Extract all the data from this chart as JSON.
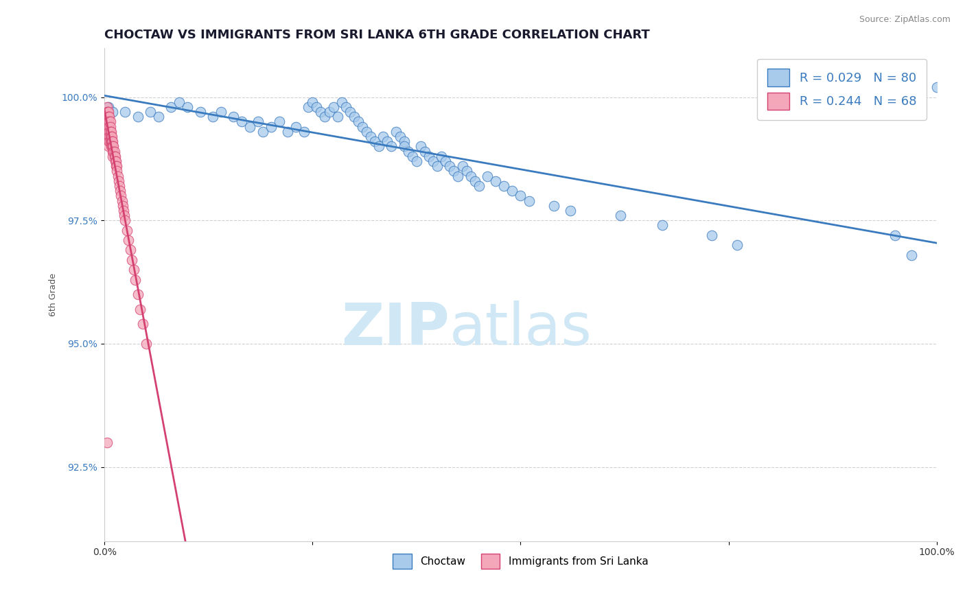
{
  "title": "CHOCTAW VS IMMIGRANTS FROM SRI LANKA 6TH GRADE CORRELATION CHART",
  "source_text": "Source: ZipAtlas.com",
  "ylabel": "6th Grade",
  "xlim": [
    0,
    1.0
  ],
  "ylim": [
    0.91,
    1.01
  ],
  "yticks": [
    0.925,
    0.95,
    0.975,
    1.0
  ],
  "ytick_labels": [
    "92.5%",
    "95.0%",
    "97.5%",
    "100.0%"
  ],
  "xticks": [
    0.0,
    0.25,
    0.5,
    0.75,
    1.0
  ],
  "xtick_labels": [
    "0.0%",
    "",
    "",
    "",
    "100.0%"
  ],
  "blue_color": "#a8caeb",
  "pink_color": "#f4a7b9",
  "blue_line_color": "#3a7bbf",
  "pink_line_color": "#d44070",
  "legend_R_blue": "R = 0.029",
  "legend_N_blue": "N = 80",
  "legend_R_pink": "R = 0.244",
  "legend_N_pink": "N = 68",
  "blue_scatter_x": [
    0.005,
    0.01,
    0.025,
    0.04,
    0.055,
    0.065,
    0.08,
    0.09,
    0.1,
    0.115,
    0.13,
    0.14,
    0.155,
    0.165,
    0.175,
    0.185,
    0.19,
    0.2,
    0.21,
    0.22,
    0.23,
    0.24,
    0.245,
    0.25,
    0.255,
    0.26,
    0.265,
    0.27,
    0.275,
    0.28,
    0.285,
    0.29,
    0.295,
    0.3,
    0.305,
    0.31,
    0.315,
    0.32,
    0.325,
    0.33,
    0.335,
    0.34,
    0.345,
    0.35,
    0.355,
    0.36,
    0.36,
    0.365,
    0.37,
    0.375,
    0.38,
    0.385,
    0.39,
    0.395,
    0.4,
    0.405,
    0.41,
    0.415,
    0.42,
    0.425,
    0.43,
    0.435,
    0.44,
    0.445,
    0.45,
    0.46,
    0.47,
    0.48,
    0.49,
    0.5,
    0.51,
    0.54,
    0.56,
    0.62,
    0.67,
    0.73,
    0.76,
    0.95,
    0.97,
    1.0
  ],
  "blue_scatter_y": [
    0.998,
    0.997,
    0.997,
    0.996,
    0.997,
    0.996,
    0.998,
    0.999,
    0.998,
    0.997,
    0.996,
    0.997,
    0.996,
    0.995,
    0.994,
    0.995,
    0.993,
    0.994,
    0.995,
    0.993,
    0.994,
    0.993,
    0.998,
    0.999,
    0.998,
    0.997,
    0.996,
    0.997,
    0.998,
    0.996,
    0.999,
    0.998,
    0.997,
    0.996,
    0.995,
    0.994,
    0.993,
    0.992,
    0.991,
    0.99,
    0.992,
    0.991,
    0.99,
    0.993,
    0.992,
    0.991,
    0.99,
    0.989,
    0.988,
    0.987,
    0.99,
    0.989,
    0.988,
    0.987,
    0.986,
    0.988,
    0.987,
    0.986,
    0.985,
    0.984,
    0.986,
    0.985,
    0.984,
    0.983,
    0.982,
    0.984,
    0.983,
    0.982,
    0.981,
    0.98,
    0.979,
    0.978,
    0.977,
    0.976,
    0.974,
    0.972,
    0.97,
    0.972,
    0.968,
    1.002
  ],
  "pink_scatter_x": [
    0.003,
    0.003,
    0.003,
    0.004,
    0.004,
    0.004,
    0.004,
    0.005,
    0.005,
    0.005,
    0.005,
    0.005,
    0.005,
    0.005,
    0.005,
    0.006,
    0.006,
    0.006,
    0.006,
    0.006,
    0.006,
    0.007,
    0.007,
    0.007,
    0.007,
    0.007,
    0.008,
    0.008,
    0.008,
    0.008,
    0.009,
    0.009,
    0.009,
    0.01,
    0.01,
    0.01,
    0.01,
    0.011,
    0.011,
    0.012,
    0.012,
    0.013,
    0.013,
    0.014,
    0.014,
    0.015,
    0.015,
    0.016,
    0.017,
    0.018,
    0.019,
    0.02,
    0.021,
    0.022,
    0.023,
    0.024,
    0.025,
    0.027,
    0.029,
    0.031,
    0.033,
    0.035,
    0.037,
    0.04,
    0.043,
    0.046,
    0.05,
    0.003
  ],
  "pink_scatter_y": [
    0.998,
    0.997,
    0.996,
    0.997,
    0.996,
    0.995,
    0.994,
    0.997,
    0.996,
    0.995,
    0.994,
    0.993,
    0.992,
    0.991,
    0.99,
    0.996,
    0.995,
    0.994,
    0.993,
    0.992,
    0.991,
    0.995,
    0.994,
    0.993,
    0.992,
    0.991,
    0.993,
    0.992,
    0.991,
    0.99,
    0.992,
    0.991,
    0.99,
    0.991,
    0.99,
    0.989,
    0.988,
    0.99,
    0.989,
    0.989,
    0.988,
    0.988,
    0.987,
    0.987,
    0.986,
    0.986,
    0.985,
    0.984,
    0.983,
    0.982,
    0.981,
    0.98,
    0.979,
    0.978,
    0.977,
    0.976,
    0.975,
    0.973,
    0.971,
    0.969,
    0.967,
    0.965,
    0.963,
    0.96,
    0.957,
    0.954,
    0.95,
    0.93
  ],
  "watermark_zip": "ZIP",
  "watermark_atlas": "atlas",
  "watermark_color": "#d0e8f5",
  "title_fontsize": 13,
  "axis_label_fontsize": 9
}
